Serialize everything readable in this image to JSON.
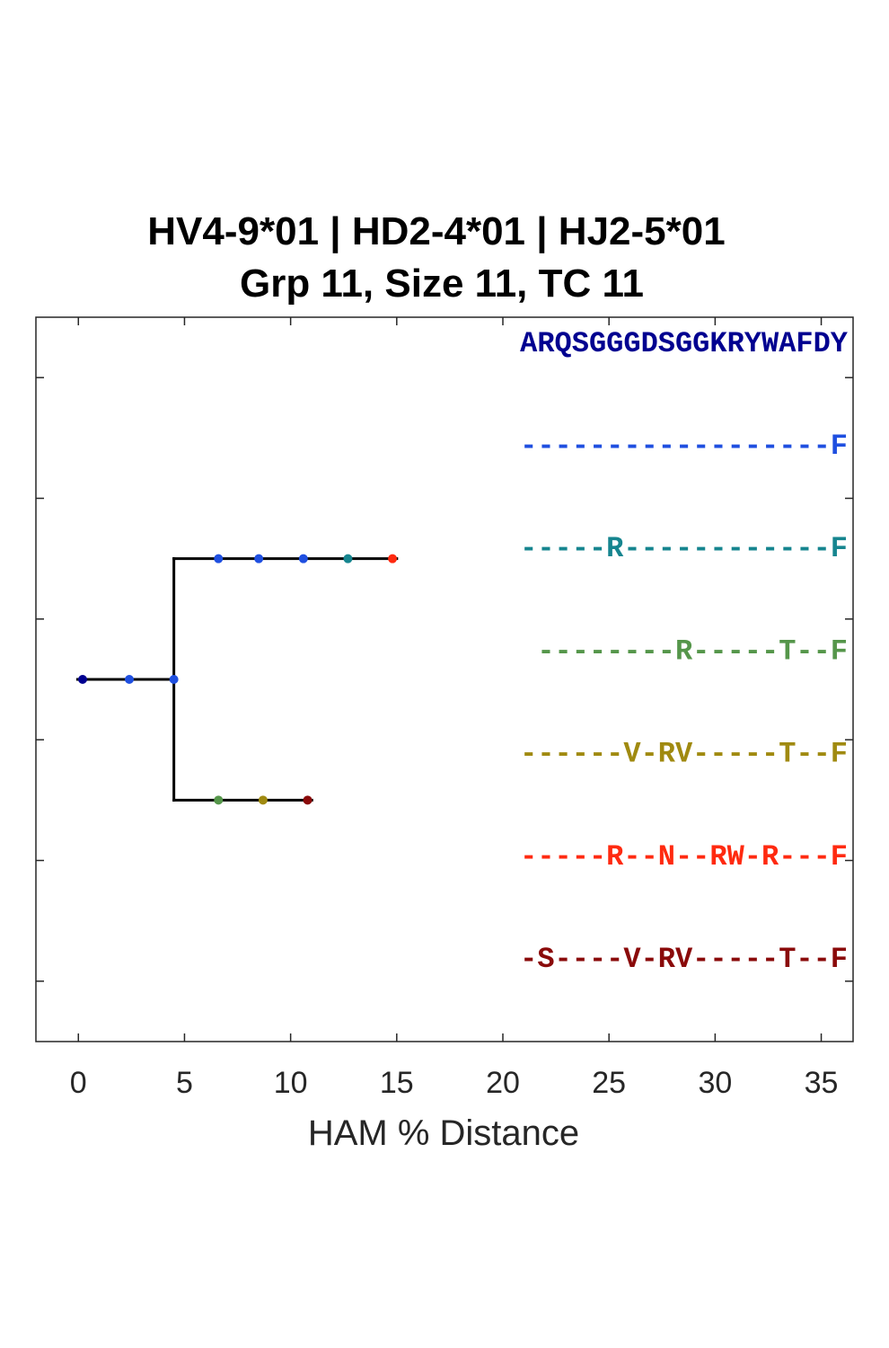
{
  "chart_data": {
    "type": "dendrogram",
    "title": [
      "HV4-9*01 | HD2-4*01 | HJ2-5*01",
      "Grp 11, Size 11, TC 11"
    ],
    "xlabel": "HAM % Distance",
    "xlim": [
      -2,
      36.5
    ],
    "ylim": [
      0.5,
      6.5
    ],
    "xticks": [
      0,
      5,
      10,
      15,
      20,
      25,
      30,
      35
    ],
    "xtick_labels": [
      "0",
      "5",
      "10",
      "15",
      "20",
      "25",
      "30",
      "35"
    ],
    "yticks": [
      1,
      2,
      3,
      4,
      5,
      6
    ],
    "tree_segments": [
      {
        "x": [
          0,
          4.5
        ],
        "y": [
          3.5,
          3.5
        ]
      },
      {
        "x": [
          4.5,
          4.5
        ],
        "y": [
          2.5,
          4.5
        ]
      },
      {
        "x": [
          4.5,
          15
        ],
        "y": [
          2.5,
          2.5
        ]
      },
      {
        "x": [
          4.5,
          11
        ],
        "y": [
          4.5,
          4.5
        ]
      }
    ],
    "nodes": [
      {
        "x": 0.2,
        "y": 3.5,
        "color": "#000090"
      },
      {
        "x": 2.4,
        "y": 3.5,
        "color": "#1f4fe0"
      },
      {
        "x": 4.5,
        "y": 3.5,
        "color": "#1f4fe0"
      },
      {
        "x": 6.6,
        "y": 2.5,
        "color": "#1f4fe0"
      },
      {
        "x": 8.5,
        "y": 2.5,
        "color": "#1f4fe0"
      },
      {
        "x": 10.6,
        "y": 2.5,
        "color": "#1f4fe0"
      },
      {
        "x": 12.7,
        "y": 2.5,
        "color": "#16858f"
      },
      {
        "x": 14.8,
        "y": 2.5,
        "color": "#ff2a10"
      },
      {
        "x": 6.6,
        "y": 4.5,
        "color": "#55964a"
      },
      {
        "x": 8.7,
        "y": 4.5,
        "color": "#a08a10"
      },
      {
        "x": 10.8,
        "y": 4.5,
        "color": "#8a0a0a"
      }
    ],
    "sequences": [
      {
        "text": "ARQSGGGDSGGKRYWAFDY",
        "color": "#000090",
        "y": 0.7
      },
      {
        "text": "------------------F",
        "color": "#1f4fe0",
        "y": 1.55
      },
      {
        "text": "-----R------------F",
        "color": "#16858f",
        "y": 2.4
      },
      {
        "text": "--------R-----T--F",
        "color": "#55964a",
        "y": 3.25
      },
      {
        "text": "------V-RV-----T--F",
        "color": "#a08a10",
        "y": 4.1
      },
      {
        "text": "-----R--N--RW-R---F",
        "color": "#ff2a10",
        "y": 4.95
      },
      {
        "text": "-S----V-RV-----T--F",
        "color": "#8a0a0a",
        "y": 5.8
      }
    ]
  }
}
